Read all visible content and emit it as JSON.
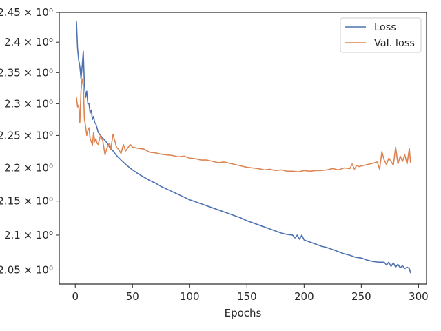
{
  "chart_data": {
    "type": "line",
    "title": "",
    "xlabel": "Epochs",
    "ylabel": "",
    "xlim": [
      -14,
      307
    ],
    "ylim": [
      2.03,
      2.45
    ],
    "y_scale": "log",
    "grid": false,
    "legend_position": "top-right",
    "x_ticks": [
      0,
      50,
      100,
      150,
      200,
      250,
      300
    ],
    "x_tick_labels": [
      "0",
      "50",
      "100",
      "150",
      "200",
      "250",
      "300"
    ],
    "y_ticks": [
      2.05,
      2.1,
      2.15,
      2.2,
      2.25,
      2.3,
      2.35,
      2.4,
      2.45
    ],
    "y_tick_labels": [
      "2.05 × 10⁰",
      "2.1 × 10⁰",
      "2.15 × 10⁰",
      "2.2 × 10⁰",
      "2.25 × 10⁰",
      "2.3 × 10⁰",
      "2.35 × 10⁰",
      "2.4 × 10⁰",
      "2.45 × 10⁰"
    ],
    "series": [
      {
        "name": "Loss",
        "color": "#4c72b0",
        "x": [
          1,
          2,
          3,
          4,
          5,
          6,
          7,
          8,
          9,
          10,
          11,
          12,
          13,
          14,
          15,
          16,
          17,
          18,
          19,
          20,
          22,
          24,
          26,
          28,
          30,
          33,
          36,
          40,
          45,
          50,
          55,
          60,
          65,
          70,
          75,
          80,
          85,
          90,
          95,
          100,
          105,
          110,
          115,
          120,
          125,
          130,
          135,
          140,
          145,
          150,
          155,
          160,
          165,
          170,
          175,
          180,
          185,
          190,
          192,
          194,
          196,
          198,
          200,
          205,
          210,
          215,
          220,
          225,
          230,
          235,
          240,
          245,
          250,
          255,
          260,
          265,
          270,
          272,
          274,
          276,
          278,
          280,
          282,
          284,
          286,
          288,
          290,
          292,
          293
        ],
        "values": [
          2.435,
          2.39,
          2.37,
          2.36,
          2.34,
          2.36,
          2.385,
          2.33,
          2.31,
          2.32,
          2.3,
          2.3,
          2.285,
          2.29,
          2.275,
          2.28,
          2.27,
          2.268,
          2.262,
          2.255,
          2.25,
          2.246,
          2.242,
          2.238,
          2.232,
          2.226,
          2.219,
          2.212,
          2.204,
          2.197,
          2.191,
          2.186,
          2.181,
          2.177,
          2.172,
          2.168,
          2.164,
          2.16,
          2.156,
          2.152,
          2.149,
          2.146,
          2.143,
          2.14,
          2.137,
          2.134,
          2.131,
          2.128,
          2.125,
          2.121,
          2.118,
          2.115,
          2.112,
          2.109,
          2.106,
          2.103,
          2.101,
          2.1,
          2.096,
          2.1,
          2.094,
          2.1,
          2.093,
          2.09,
          2.087,
          2.084,
          2.082,
          2.079,
          2.076,
          2.073,
          2.071,
          2.068,
          2.067,
          2.064,
          2.062,
          2.061,
          2.061,
          2.057,
          2.061,
          2.055,
          2.06,
          2.054,
          2.058,
          2.053,
          2.056,
          2.052,
          2.054,
          2.052,
          2.046
        ]
      },
      {
        "name": "Val. loss",
        "color": "#dd8452",
        "x": [
          1,
          2,
          3,
          4,
          5,
          6,
          7,
          8,
          9,
          10,
          11,
          12,
          13,
          14,
          15,
          16,
          17,
          18,
          19,
          20,
          22,
          24,
          26,
          28,
          30,
          31,
          33,
          36,
          38,
          40,
          42,
          44,
          46,
          48,
          50,
          55,
          60,
          65,
          70,
          75,
          80,
          85,
          90,
          95,
          100,
          105,
          110,
          115,
          120,
          125,
          130,
          135,
          140,
          145,
          150,
          155,
          160,
          165,
          170,
          175,
          180,
          185,
          190,
          195,
          200,
          205,
          210,
          215,
          220,
          225,
          230,
          235,
          240,
          242,
          244,
          246,
          248,
          250,
          255,
          260,
          264,
          266,
          268,
          270,
          272,
          274,
          276,
          278,
          280,
          282,
          284,
          286,
          288,
          290,
          292,
          293
        ],
        "values": [
          2.31,
          2.295,
          2.298,
          2.27,
          2.32,
          2.34,
          2.33,
          2.275,
          2.265,
          2.25,
          2.258,
          2.262,
          2.245,
          2.24,
          2.235,
          2.255,
          2.24,
          2.245,
          2.238,
          2.236,
          2.25,
          2.242,
          2.22,
          2.232,
          2.238,
          2.228,
          2.252,
          2.232,
          2.228,
          2.222,
          2.236,
          2.226,
          2.231,
          2.236,
          2.232,
          2.23,
          2.229,
          2.224,
          2.223,
          2.221,
          2.22,
          2.219,
          2.217,
          2.218,
          2.215,
          2.214,
          2.212,
          2.212,
          2.21,
          2.208,
          2.209,
          2.207,
          2.205,
          2.203,
          2.201,
          2.2,
          2.199,
          2.197,
          2.198,
          2.196,
          2.197,
          2.195,
          2.195,
          2.194,
          2.196,
          2.195,
          2.196,
          2.196,
          2.197,
          2.199,
          2.197,
          2.2,
          2.199,
          2.206,
          2.198,
          2.204,
          2.202,
          2.203,
          2.205,
          2.207,
          2.209,
          2.198,
          2.225,
          2.212,
          2.205,
          2.215,
          2.21,
          2.204,
          2.232,
          2.206,
          2.218,
          2.21,
          2.22,
          2.206,
          2.23,
          2.208
        ]
      }
    ]
  }
}
